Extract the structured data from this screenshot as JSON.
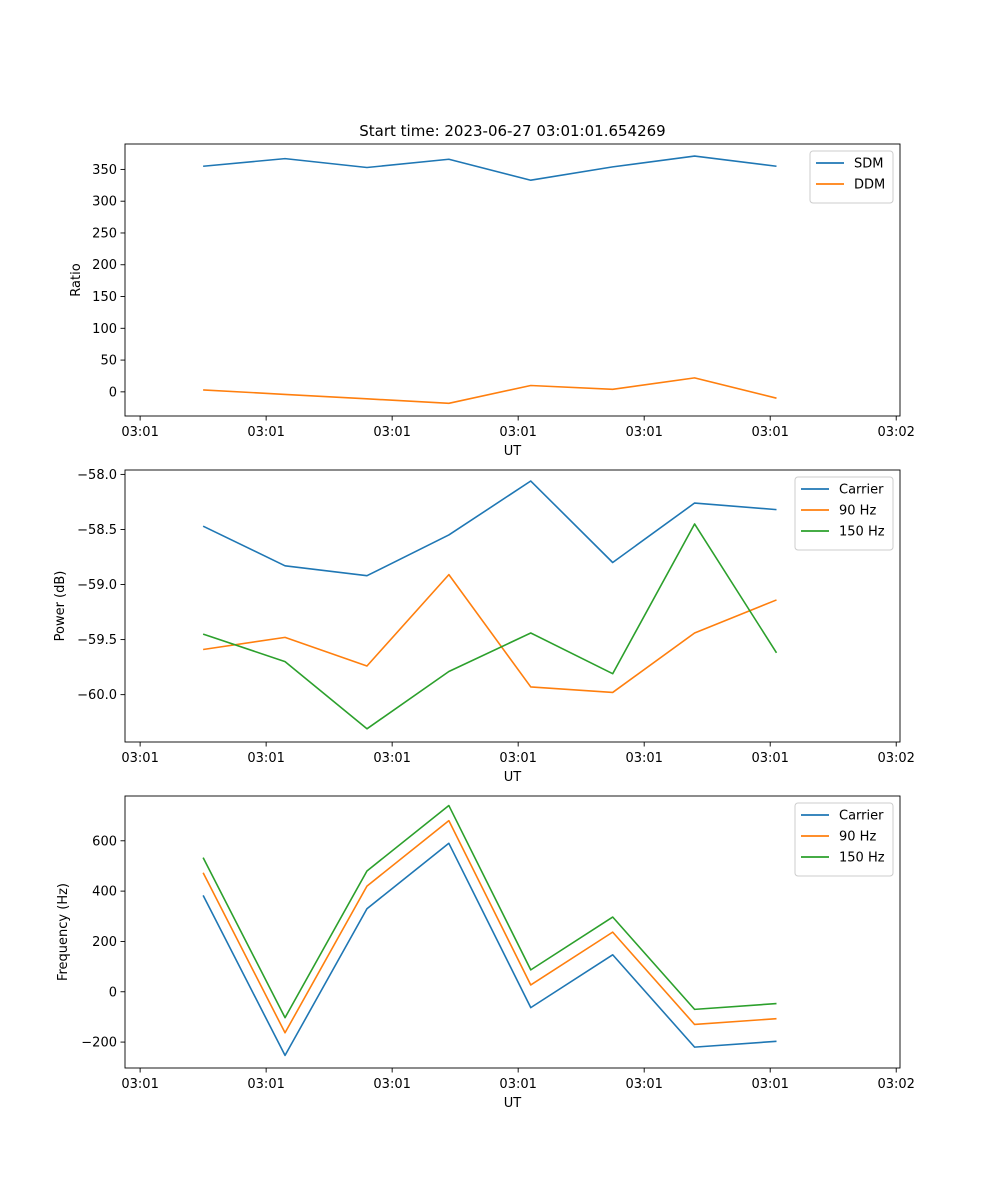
{
  "figure": {
    "title": "Start time: 2023-06-27 03:01:01.654269"
  },
  "chart_data": [
    {
      "type": "line",
      "title": "Start time: 2023-06-27 03:01:01.654269",
      "xlabel": "UT",
      "ylabel": "Ratio",
      "x_tick_labels": [
        "03:01",
        "03:01",
        "03:01",
        "03:01",
        "03:01",
        "03:01",
        "03:02"
      ],
      "x_ticks": [
        0,
        1,
        2,
        3,
        4,
        5,
        6
      ],
      "xlim": [
        -0.12,
        6.03
      ],
      "ylim": [
        -38,
        390
      ],
      "y_ticks": [
        0,
        50,
        100,
        150,
        200,
        250,
        300,
        350
      ],
      "y_tick_labels": [
        "0",
        "50",
        "100",
        "150",
        "200",
        "250",
        "300",
        "350"
      ],
      "x": [
        0.5,
        1.15,
        1.8,
        2.45,
        3.1,
        3.75,
        4.4,
        5.05
      ],
      "series": [
        {
          "name": "SDM",
          "color": "#1f77b4",
          "values": [
            355,
            367,
            353,
            366,
            333,
            354,
            371,
            355
          ]
        },
        {
          "name": "DDM",
          "color": "#ff7f0e",
          "values": [
            3,
            -4,
            -11,
            -18,
            10,
            4,
            22,
            -10
          ]
        }
      ],
      "legend": "top-right",
      "grid": false
    },
    {
      "type": "line",
      "title": "",
      "xlabel": "UT",
      "ylabel": "Power (dB)",
      "x_tick_labels": [
        "03:01",
        "03:01",
        "03:01",
        "03:01",
        "03:01",
        "03:01",
        "03:02"
      ],
      "x_ticks": [
        0,
        1,
        2,
        3,
        4,
        5,
        6
      ],
      "xlim": [
        -0.12,
        6.03
      ],
      "ylim": [
        -60.43,
        -57.96
      ],
      "y_ticks": [
        -60.0,
        -59.5,
        -59.0,
        -58.5,
        -58.0
      ],
      "y_tick_labels": [
        "−60.0",
        "−59.5",
        "−59.0",
        "−58.5",
        "−58.0"
      ],
      "x": [
        0.5,
        1.15,
        1.8,
        2.45,
        3.1,
        3.75,
        4.4,
        5.05
      ],
      "series": [
        {
          "name": "Carrier",
          "color": "#1f77b4",
          "values": [
            -58.47,
            -58.83,
            -58.92,
            -58.55,
            -58.06,
            -58.8,
            -58.26,
            -58.32
          ]
        },
        {
          "name": "90 Hz",
          "color": "#ff7f0e",
          "values": [
            -59.59,
            -59.48,
            -59.74,
            -58.91,
            -59.93,
            -59.98,
            -59.44,
            -59.14
          ]
        },
        {
          "name": "150 Hz",
          "color": "#2ca02c",
          "values": [
            -59.45,
            -59.7,
            -60.31,
            -59.79,
            -59.44,
            -59.81,
            -58.45,
            -59.62
          ]
        }
      ],
      "legend": "top-right",
      "grid": false
    },
    {
      "type": "line",
      "title": "",
      "xlabel": "UT",
      "ylabel": "Frequency (Hz)",
      "x_tick_labels": [
        "03:01",
        "03:01",
        "03:01",
        "03:01",
        "03:01",
        "03:01",
        "03:02"
      ],
      "x_ticks": [
        0,
        1,
        2,
        3,
        4,
        5,
        6
      ],
      "xlim": [
        -0.12,
        6.03
      ],
      "ylim": [
        -303,
        778
      ],
      "y_ticks": [
        -200,
        0,
        200,
        400,
        600
      ],
      "y_tick_labels": [
        "−200",
        "0",
        "200",
        "400",
        "600"
      ],
      "x": [
        0.5,
        1.15,
        1.8,
        2.45,
        3.1,
        3.75,
        4.4,
        5.05
      ],
      "series": [
        {
          "name": "Carrier",
          "color": "#1f77b4",
          "values": [
            383,
            -253,
            330,
            590,
            -63,
            147,
            -220,
            -197
          ]
        },
        {
          "name": "90 Hz",
          "color": "#ff7f0e",
          "values": [
            473,
            -163,
            420,
            680,
            27,
            237,
            -130,
            -107
          ]
        },
        {
          "name": "150 Hz",
          "color": "#2ca02c",
          "values": [
            533,
            -103,
            480,
            740,
            87,
            297,
            -70,
            -47
          ]
        }
      ],
      "legend": "top-right",
      "grid": false
    }
  ]
}
